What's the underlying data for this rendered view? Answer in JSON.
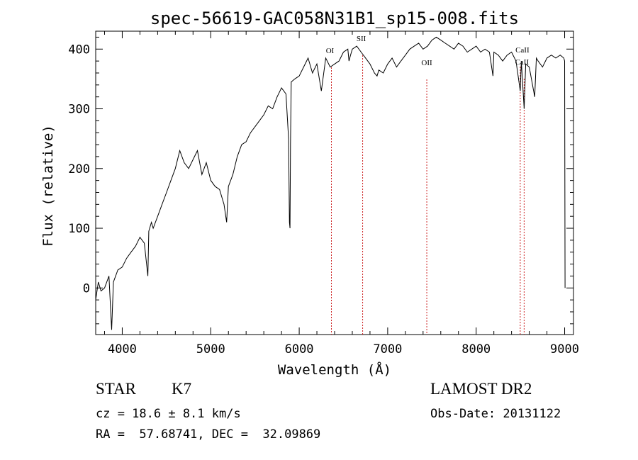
{
  "chart_data": {
    "type": "line",
    "title": "spec-56619-GAC058N31B1_sp15-008.fits",
    "xlabel": "Wavelength (Å)",
    "ylabel": "Flux (relative)",
    "xlim": [
      3700,
      9100
    ],
    "ylim": [
      -78,
      430
    ],
    "xticks": [
      4000,
      5000,
      6000,
      7000,
      8000,
      9000
    ],
    "yticks": [
      0,
      100,
      200,
      300,
      400
    ],
    "grid": false,
    "series": [
      {
        "x": [
          3700,
          3730,
          3760,
          3800,
          3850,
          3870,
          3880,
          3900,
          3950,
          4000,
          4050,
          4100,
          4150,
          4200,
          4250,
          4290,
          4300,
          4330,
          4350,
          4400,
          4450,
          4500,
          4550,
          4600,
          4650,
          4700,
          4750,
          4800,
          4850,
          4900,
          4950,
          5000,
          5050,
          5100,
          5150,
          5180,
          5200,
          5250,
          5300,
          5350,
          5400,
          5450,
          5500,
          5550,
          5600,
          5650,
          5700,
          5750,
          5800,
          5850,
          5880,
          5890,
          5896,
          5902,
          5910,
          5950,
          6000,
          6050,
          6100,
          6150,
          6200,
          6250,
          6300,
          6350,
          6400,
          6450,
          6500,
          6550,
          6563,
          6580,
          6600,
          6650,
          6700,
          6750,
          6800,
          6850,
          6880,
          6900,
          6950,
          7000,
          7050,
          7100,
          7150,
          7200,
          7250,
          7300,
          7350,
          7400,
          7450,
          7500,
          7550,
          7600,
          7650,
          7700,
          7750,
          7800,
          7850,
          7900,
          7950,
          8000,
          8050,
          8100,
          8150,
          8190,
          8200,
          8250,
          8300,
          8350,
          8400,
          8450,
          8498,
          8510,
          8542,
          8560,
          8600,
          8662,
          8680,
          8700,
          8750,
          8800,
          8850,
          8900,
          8950,
          8990,
          9000,
          9005
        ],
        "y": [
          -20,
          10,
          -5,
          0,
          20,
          -40,
          -70,
          10,
          30,
          35,
          50,
          60,
          70,
          85,
          75,
          20,
          95,
          110,
          100,
          120,
          140,
          160,
          180,
          200,
          230,
          210,
          200,
          215,
          230,
          190,
          210,
          180,
          170,
          165,
          140,
          110,
          170,
          190,
          220,
          240,
          245,
          260,
          270,
          280,
          290,
          305,
          300,
          320,
          335,
          325,
          250,
          110,
          100,
          240,
          345,
          350,
          355,
          370,
          385,
          360,
          375,
          330,
          385,
          370,
          375,
          380,
          395,
          400,
          380,
          390,
          400,
          405,
          395,
          385,
          375,
          360,
          355,
          365,
          360,
          375,
          385,
          370,
          380,
          390,
          400,
          405,
          410,
          400,
          405,
          415,
          420,
          415,
          410,
          405,
          400,
          410,
          405,
          395,
          400,
          405,
          395,
          400,
          395,
          355,
          395,
          390,
          380,
          390,
          395,
          380,
          330,
          380,
          300,
          375,
          370,
          320,
          385,
          380,
          370,
          385,
          390,
          385,
          390,
          385,
          380,
          0
        ]
      }
    ],
    "annotations": [
      {
        "label": "OI",
        "x": 6364
      },
      {
        "label": "SII",
        "x": 6717
      },
      {
        "label": "OII",
        "x": 7442
      },
      {
        "label": "CaII",
        "x": 8498
      },
      {
        "label": "CaII",
        "x": 8542
      }
    ]
  },
  "info": {
    "class": "STAR",
    "subclass": "K7",
    "cz": "cz = 18.6 ± 8.1 km/s",
    "radec": "RA =  57.68741, DEC =  32.09869",
    "survey": "LAMOST DR2",
    "obsdate": "Obs-Date: 20131122"
  }
}
